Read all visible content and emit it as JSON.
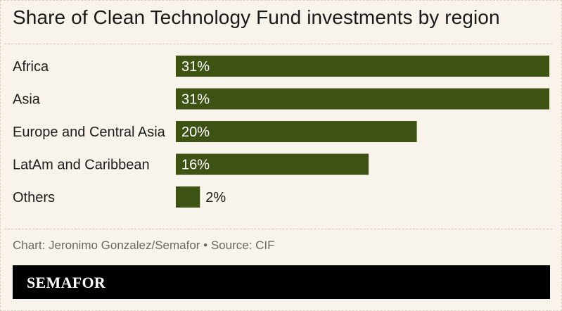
{
  "chart_data": {
    "type": "bar",
    "orientation": "horizontal",
    "title": "Share of Clean Technology Fund investments by region",
    "categories": [
      "Africa",
      "Asia",
      "Europe and Central Asia",
      "LatAm and Caribbean",
      "Others"
    ],
    "values": [
      31,
      31,
      20,
      16,
      2
    ],
    "value_labels": [
      "31%",
      "31%",
      "20%",
      "16%",
      "2%"
    ],
    "xlim": [
      0,
      31
    ],
    "grid": false,
    "legend": "none",
    "bar_color": "#3d5213"
  },
  "source": "Chart: Jeronimo Gonzalez/Semafor • Source: CIF",
  "brand": "SEMAFOR",
  "colors": {
    "background": "#f9f4eb",
    "bar": "#3d5213",
    "footer": "#000000"
  }
}
